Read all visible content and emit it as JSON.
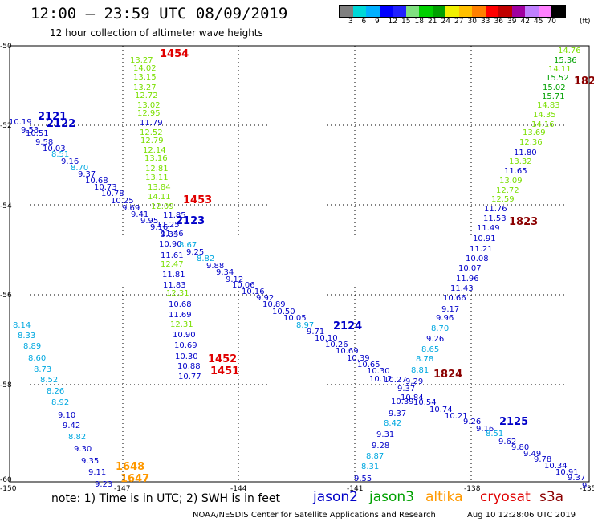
{
  "header": {
    "title": "12:00 – 23:59 UTC 08/09/2019",
    "subtitle": "12 hour collection of altimeter wave heights"
  },
  "colorbar": {
    "colors": [
      "#7f7f7f",
      "#00d8d8",
      "#00b0ff",
      "#0000ff",
      "#2020ff",
      "#80e080",
      "#00d000",
      "#00a000",
      "#f0f000",
      "#ffc000",
      "#ff8000",
      "#ff0000",
      "#c00000",
      "#a000a0",
      "#c080ff",
      "#ff80ff",
      "#000000"
    ],
    "labels": [
      "3",
      "6",
      "9",
      "12",
      "15",
      "18",
      "21",
      "24",
      "27",
      "30",
      "33",
      "36",
      "39",
      "42",
      "45",
      "70",
      "(ft)"
    ]
  },
  "axes": {
    "lon_labels": [
      "-150",
      "-147",
      "-144",
      "-141",
      "-138",
      "-135"
    ],
    "lat_labels": [
      "-50",
      "-52",
      "-54",
      "-56",
      "-58",
      "-60"
    ]
  },
  "satellites": [
    {
      "name": "jason2",
      "color": "#0000c8"
    },
    {
      "name": "jason3",
      "color": "#00a000"
    },
    {
      "name": "altika",
      "color": "#ff9900"
    },
    {
      "name": "cryosat",
      "color": "#e00000"
    },
    {
      "name": "s3a",
      "color": "#8b0000"
    }
  ],
  "tracks": [
    {
      "id": "green-track",
      "satellite": "jason3",
      "labels": [
        {
          "text": "13.27",
          "color": "#7adf00"
        },
        {
          "text": "14.02",
          "color": "#7adf00"
        },
        {
          "text": "13.15",
          "color": "#7adf00"
        },
        {
          "text": "13.27",
          "color": "#7adf00"
        },
        {
          "text": "12.72",
          "color": "#7adf00"
        },
        {
          "text": "13.02",
          "color": "#7adf00"
        },
        {
          "text": "12.95",
          "color": "#7adf00"
        },
        {
          "text": "11.79",
          "color": "#0000c8"
        },
        {
          "text": "12.52",
          "color": "#7adf00"
        },
        {
          "text": "12.79",
          "color": "#7adf00"
        },
        {
          "text": "12.14",
          "color": "#7adf00"
        },
        {
          "text": "13.16",
          "color": "#7adf00"
        },
        {
          "text": "12.81",
          "color": "#7adf00"
        },
        {
          "text": "13.11",
          "color": "#7adf00"
        },
        {
          "text": "13.84",
          "color": "#7adf00"
        },
        {
          "text": "14.11",
          "color": "#7adf00"
        },
        {
          "text": "12.09",
          "color": "#7adf00"
        },
        {
          "text": "11.85",
          "color": "#0000c8"
        },
        {
          "text": "11.25",
          "color": "#0000c8"
        },
        {
          "text": "11.46",
          "color": "#0000c8"
        },
        {
          "text": "10.90",
          "color": "#0000c8"
        },
        {
          "text": "11.61",
          "color": "#0000c8"
        },
        {
          "text": "12.47",
          "color": "#7adf00"
        },
        {
          "text": "11.81",
          "color": "#0000c8"
        },
        {
          "text": "11.83",
          "color": "#0000c8"
        },
        {
          "text": "12.31",
          "color": "#7adf00"
        },
        {
          "text": "10.68",
          "color": "#0000c8"
        },
        {
          "text": "11.69",
          "color": "#0000c8"
        },
        {
          "text": "12.31",
          "color": "#7adf00"
        },
        {
          "text": "10.90",
          "color": "#0000c8"
        },
        {
          "text": "10.69",
          "color": "#0000c8"
        },
        {
          "text": "10.30",
          "color": "#0000c8"
        },
        {
          "text": "10.88",
          "color": "#0000c8"
        },
        {
          "text": "10.77",
          "color": "#0000c8"
        }
      ]
    },
    {
      "id": "jason2-2122-track",
      "satellite": "jason2",
      "labels": [
        {
          "text": "10.19",
          "color": "#0000c8"
        },
        {
          "text": "9.53",
          "color": "#0000c8"
        },
        {
          "text": "10.51",
          "color": "#0000c8"
        },
        {
          "text": "9.58",
          "color": "#0000c8"
        },
        {
          "text": "10.03",
          "color": "#0000c8"
        },
        {
          "text": "8.51",
          "color": "#00a8e0"
        },
        {
          "text": "9.16",
          "color": "#0000c8"
        },
        {
          "text": "8.70",
          "color": "#00a8e0"
        },
        {
          "text": "9.37",
          "color": "#0000c8"
        },
        {
          "text": "10.68",
          "color": "#0000c8"
        },
        {
          "text": "10.73",
          "color": "#0000c8"
        },
        {
          "text": "10.78",
          "color": "#0000c8"
        },
        {
          "text": "10.25",
          "color": "#0000c8"
        },
        {
          "text": "9.69",
          "color": "#0000c8"
        },
        {
          "text": "9.41",
          "color": "#0000c8"
        },
        {
          "text": "9.95",
          "color": "#0000c8"
        },
        {
          "text": "9.16",
          "color": "#0000c8"
        },
        {
          "text": "9.33",
          "color": "#0000c8"
        },
        {
          "text": "8.67",
          "color": "#00a8e0"
        },
        {
          "text": "9.25",
          "color": "#0000c8"
        },
        {
          "text": "8.82",
          "color": "#00a8e0"
        },
        {
          "text": "9.88",
          "color": "#0000c8"
        },
        {
          "text": "9.34",
          "color": "#0000c8"
        },
        {
          "text": "9.12",
          "color": "#0000c8"
        },
        {
          "text": "10.06",
          "color": "#0000c8"
        },
        {
          "text": "10.16",
          "color": "#0000c8"
        },
        {
          "text": "9.92",
          "color": "#0000c8"
        },
        {
          "text": "10.89",
          "color": "#0000c8"
        },
        {
          "text": "10.50",
          "color": "#0000c8"
        },
        {
          "text": "10.05",
          "color": "#0000c8"
        },
        {
          "text": "8.97",
          "color": "#00a8e0"
        },
        {
          "text": "9.71",
          "color": "#0000c8"
        },
        {
          "text": "10.10",
          "color": "#0000c8"
        },
        {
          "text": "10.26",
          "color": "#0000c8"
        },
        {
          "text": "10.69",
          "color": "#0000c8"
        },
        {
          "text": "10.39",
          "color": "#0000c8"
        },
        {
          "text": "10.65",
          "color": "#0000c8"
        },
        {
          "text": "10.30",
          "color": "#0000c8"
        },
        {
          "text": "10.12",
          "color": "#0000c8"
        },
        {
          "text": "10.27",
          "color": "#0000c8"
        },
        {
          "text": "10.84",
          "color": "#0000c8"
        },
        {
          "text": "10.54",
          "color": "#0000c8"
        },
        {
          "text": "10.74",
          "color": "#0000c8"
        },
        {
          "text": "10.21",
          "color": "#0000c8"
        },
        {
          "text": "9.26",
          "color": "#0000c8"
        },
        {
          "text": "9.16",
          "color": "#0000c8"
        },
        {
          "text": "8.51",
          "color": "#00a8e0"
        },
        {
          "text": "9.62",
          "color": "#0000c8"
        },
        {
          "text": "9.80",
          "color": "#0000c8"
        },
        {
          "text": "9.49",
          "color": "#0000c8"
        },
        {
          "text": "9.78",
          "color": "#0000c8"
        },
        {
          "text": "10.34",
          "color": "#0000c8"
        },
        {
          "text": "10.91",
          "color": "#0000c8"
        },
        {
          "text": "9.37",
          "color": "#0000c8"
        },
        {
          "text": "9.",
          "color": "#0000c8"
        }
      ]
    },
    {
      "id": "jason2-2125-track",
      "satellite": "jason2",
      "labels": [
        {
          "text": "8.14",
          "color": "#00a8e0"
        },
        {
          "text": "8.33",
          "color": "#00a8e0"
        },
        {
          "text": "8.89",
          "color": "#00a8e0"
        },
        {
          "text": "8.60",
          "color": "#00a8e0"
        },
        {
          "text": "8.73",
          "color": "#00a8e0"
        },
        {
          "text": "8.52",
          "color": "#00a8e0"
        },
        {
          "text": "8.26",
          "color": "#00a8e0"
        },
        {
          "text": "8.92",
          "color": "#00a8e0"
        },
        {
          "text": "9.10",
          "color": "#0000c8"
        },
        {
          "text": "9.42",
          "color": "#0000c8"
        },
        {
          "text": "8.82",
          "color": "#00a8e0"
        },
        {
          "text": "9.30",
          "color": "#0000c8"
        },
        {
          "text": "9.35",
          "color": "#0000c8"
        },
        {
          "text": "9.11",
          "color": "#0000c8"
        },
        {
          "text": "9.23",
          "color": "#0000c8"
        }
      ]
    },
    {
      "id": "s3a-1823-track",
      "satellite": "s3a",
      "labels": [
        {
          "text": "14.76",
          "color": "#7adf00"
        },
        {
          "text": "15.36",
          "color": "#00a000"
        },
        {
          "text": "14.11",
          "color": "#7adf00"
        },
        {
          "text": "15.52",
          "color": "#00a000"
        },
        {
          "text": "15.02",
          "color": "#00a000"
        },
        {
          "text": "15.71",
          "color": "#00a000"
        },
        {
          "text": "14.83",
          "color": "#7adf00"
        },
        {
          "text": "14.35",
          "color": "#7adf00"
        },
        {
          "text": "14.16",
          "color": "#7adf00"
        },
        {
          "text": "13.69",
          "color": "#7adf00"
        },
        {
          "text": "12.36",
          "color": "#7adf00"
        },
        {
          "text": "11.80",
          "color": "#0000c8"
        },
        {
          "text": "13.32",
          "color": "#7adf00"
        },
        {
          "text": "11.65",
          "color": "#0000c8"
        },
        {
          "text": "13.09",
          "color": "#7adf00"
        },
        {
          "text": "12.72",
          "color": "#7adf00"
        },
        {
          "text": "12.59",
          "color": "#7adf00"
        },
        {
          "text": "11.76",
          "color": "#0000c8"
        },
        {
          "text": "11.53",
          "color": "#0000c8"
        },
        {
          "text": "11.49",
          "color": "#0000c8"
        },
        {
          "text": "10.91",
          "color": "#0000c8"
        },
        {
          "text": "11.21",
          "color": "#0000c8"
        },
        {
          "text": "10.08",
          "color": "#0000c8"
        },
        {
          "text": "10.07",
          "color": "#0000c8"
        },
        {
          "text": "11.96",
          "color": "#0000c8"
        },
        {
          "text": "11.43",
          "color": "#0000c8"
        },
        {
          "text": "10.66",
          "color": "#0000c8"
        },
        {
          "text": "9.17",
          "color": "#0000c8"
        },
        {
          "text": "9.96",
          "color": "#0000c8"
        },
        {
          "text": "8.70",
          "color": "#00a8e0"
        },
        {
          "text": "9.26",
          "color": "#0000c8"
        },
        {
          "text": "8.65",
          "color": "#00a8e0"
        },
        {
          "text": "8.78",
          "color": "#00a8e0"
        },
        {
          "text": "8.81",
          "color": "#00a8e0"
        },
        {
          "text": "9.29",
          "color": "#0000c8"
        },
        {
          "text": "9.37",
          "color": "#0000c8"
        },
        {
          "text": "10.39",
          "color": "#0000c8"
        },
        {
          "text": "9.37",
          "color": "#0000c8"
        },
        {
          "text": "8.42",
          "color": "#00a8e0"
        },
        {
          "text": "9.31",
          "color": "#0000c8"
        },
        {
          "text": "9.28",
          "color": "#0000c8"
        },
        {
          "text": "8.87",
          "color": "#00a8e0"
        },
        {
          "text": "8.31",
          "color": "#00a8e0"
        },
        {
          "text": "9.55",
          "color": "#0000c8"
        }
      ]
    }
  ],
  "pass_labels": [
    {
      "text": "1454",
      "color": "#e00000"
    },
    {
      "text": "2121",
      "color": "#0000c8"
    },
    {
      "text": "2122",
      "color": "#0000c8"
    },
    {
      "text": "1453",
      "color": "#e00000"
    },
    {
      "text": "2123",
      "color": "#0000c8"
    },
    {
      "text": "182",
      "color": "#8b0000"
    },
    {
      "text": "1823",
      "color": "#8b0000"
    },
    {
      "text": "2124",
      "color": "#0000c8"
    },
    {
      "text": "1452",
      "color": "#e00000"
    },
    {
      "text": "1451",
      "color": "#e00000"
    },
    {
      "text": "1824",
      "color": "#8b0000"
    },
    {
      "text": "2125",
      "color": "#0000c8"
    },
    {
      "text": "1648",
      "color": "#ff9900"
    },
    {
      "text": "1647",
      "color": "#ff9900"
    }
  ],
  "footer": {
    "note": "note: 1) Time is in UTC; 2) SWH is in feet",
    "credit": "NOAA/NESDIS Center for Satellite Applications and Research",
    "timestamp": "Aug 10 12:28:06 UTC 2019"
  }
}
